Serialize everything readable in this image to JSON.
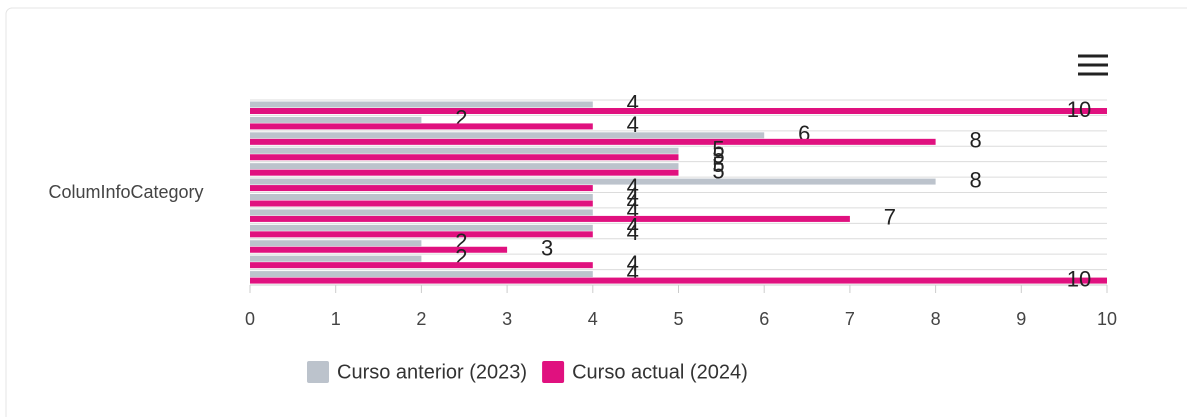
{
  "chart_data": {
    "type": "bar",
    "orientation": "horizontal",
    "ylabel": "ColumInfoCategory",
    "categories": [
      null,
      null,
      null,
      null,
      null,
      null,
      null,
      null,
      null,
      null,
      null,
      null
    ],
    "series": [
      {
        "name": "Curso anterior (2023)",
        "color": "#bcc3cc",
        "values": [
          4,
          2,
          6,
          5,
          5,
          8,
          4,
          4,
          4,
          2,
          2,
          4
        ]
      },
      {
        "name": "Curso actual (2024)",
        "color": "#e0117f",
        "values": [
          10,
          4,
          8,
          5,
          5,
          4,
          4,
          7,
          4,
          3,
          4,
          10
        ]
      }
    ],
    "xlim": [
      0,
      10
    ],
    "xticks": [
      0,
      1,
      2,
      3,
      4,
      5,
      6,
      7,
      8,
      9,
      10
    ],
    "grid": true
  }
}
